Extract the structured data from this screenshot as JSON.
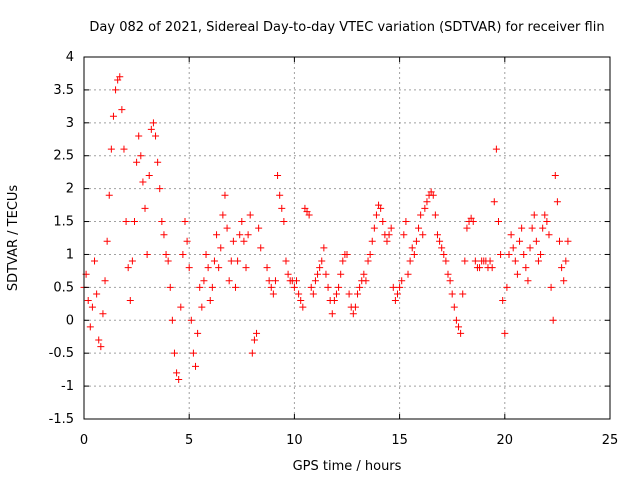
{
  "chart_data": {
    "type": "scatter",
    "title": "Day 082 of 2021, Sidereal Day-to-day VTEC variation (SDTVAR) for receiver flin",
    "xlabel": "GPS time / hours",
    "ylabel": "SDTVAR / TECUs",
    "xlim": [
      0,
      25
    ],
    "ylim": [
      -1.5,
      4
    ],
    "xticks": [
      0,
      5,
      10,
      15,
      20,
      25
    ],
    "yticks": [
      -1.5,
      -1,
      -0.5,
      0,
      0.5,
      1,
      1.5,
      2,
      2.5,
      3,
      3.5,
      4
    ],
    "xtick_labels": [
      "0",
      "5",
      "10",
      "15",
      "20",
      "25"
    ],
    "ytick_labels": [
      "-1.5",
      "-1",
      "-0.5",
      "0",
      "0.5",
      "1",
      "1.5",
      "2",
      "2.5",
      "3",
      "3.5",
      "4"
    ],
    "grid": true,
    "marker": "+",
    "color": "#ff0000",
    "series": [
      {
        "name": "SDTVAR",
        "points": [
          [
            0.0,
            0.5
          ],
          [
            0.1,
            0.7
          ],
          [
            0.2,
            0.3
          ],
          [
            0.3,
            -0.1
          ],
          [
            0.4,
            0.2
          ],
          [
            0.5,
            0.9
          ],
          [
            0.6,
            0.4
          ],
          [
            0.7,
            -0.3
          ],
          [
            0.8,
            -0.4
          ],
          [
            0.9,
            0.1
          ],
          [
            1.0,
            0.6
          ],
          [
            1.1,
            1.2
          ],
          [
            1.2,
            1.9
          ],
          [
            1.3,
            2.6
          ],
          [
            1.4,
            3.1
          ],
          [
            1.5,
            3.5
          ],
          [
            1.6,
            3.65
          ],
          [
            1.7,
            3.7
          ],
          [
            1.8,
            3.2
          ],
          [
            1.9,
            2.6
          ],
          [
            2.0,
            1.5
          ],
          [
            2.1,
            0.8
          ],
          [
            2.2,
            0.3
          ],
          [
            2.3,
            0.9
          ],
          [
            2.4,
            1.5
          ],
          [
            2.5,
            2.4
          ],
          [
            2.6,
            2.8
          ],
          [
            2.7,
            2.5
          ],
          [
            2.8,
            2.1
          ],
          [
            2.9,
            1.7
          ],
          [
            3.0,
            1.0
          ],
          [
            3.1,
            2.2
          ],
          [
            3.2,
            2.9
          ],
          [
            3.3,
            3.0
          ],
          [
            3.4,
            2.8
          ],
          [
            3.5,
            2.4
          ],
          [
            3.6,
            2.0
          ],
          [
            3.7,
            1.5
          ],
          [
            3.8,
            1.3
          ],
          [
            3.9,
            1.0
          ],
          [
            4.0,
            0.9
          ],
          [
            4.1,
            0.5
          ],
          [
            4.2,
            0.0
          ],
          [
            4.3,
            -0.5
          ],
          [
            4.4,
            -0.8
          ],
          [
            4.5,
            -0.9
          ],
          [
            4.6,
            0.2
          ],
          [
            4.7,
            1.0
          ],
          [
            4.8,
            1.5
          ],
          [
            4.9,
            1.2
          ],
          [
            5.0,
            0.8
          ],
          [
            5.1,
            0.0
          ],
          [
            5.2,
            -0.5
          ],
          [
            5.3,
            -0.7
          ],
          [
            5.4,
            -0.2
          ],
          [
            5.5,
            0.5
          ],
          [
            5.6,
            0.2
          ],
          [
            5.7,
            0.6
          ],
          [
            5.8,
            1.0
          ],
          [
            5.9,
            0.8
          ],
          [
            6.0,
            0.3
          ],
          [
            6.1,
            0.5
          ],
          [
            6.2,
            0.9
          ],
          [
            6.3,
            1.3
          ],
          [
            6.4,
            0.8
          ],
          [
            6.5,
            1.1
          ],
          [
            6.6,
            1.6
          ],
          [
            6.7,
            1.9
          ],
          [
            6.8,
            1.4
          ],
          [
            6.9,
            0.6
          ],
          [
            7.0,
            0.9
          ],
          [
            7.1,
            1.2
          ],
          [
            7.2,
            0.5
          ],
          [
            7.3,
            0.9
          ],
          [
            7.4,
            1.3
          ],
          [
            7.5,
            1.5
          ],
          [
            7.6,
            1.2
          ],
          [
            7.7,
            0.8
          ],
          [
            7.8,
            1.3
          ],
          [
            7.9,
            1.6
          ],
          [
            8.0,
            -0.5
          ],
          [
            8.1,
            -0.3
          ],
          [
            8.2,
            -0.2
          ],
          [
            8.3,
            1.4
          ],
          [
            8.4,
            1.1
          ],
          [
            8.7,
            0.8
          ],
          [
            8.8,
            0.6
          ],
          [
            8.9,
            0.5
          ],
          [
            9.0,
            0.4
          ],
          [
            9.1,
            0.6
          ],
          [
            9.2,
            2.2
          ],
          [
            9.3,
            1.9
          ],
          [
            9.4,
            1.7
          ],
          [
            9.5,
            1.5
          ],
          [
            9.6,
            0.9
          ],
          [
            9.7,
            0.7
          ],
          [
            9.8,
            0.6
          ],
          [
            9.9,
            0.6
          ],
          [
            10.0,
            0.5
          ],
          [
            10.1,
            0.6
          ],
          [
            10.2,
            0.4
          ],
          [
            10.3,
            0.3
          ],
          [
            10.4,
            0.2
          ],
          [
            10.5,
            1.7
          ],
          [
            10.6,
            1.65
          ],
          [
            10.7,
            1.6
          ],
          [
            10.8,
            0.5
          ],
          [
            10.9,
            0.4
          ],
          [
            11.0,
            0.6
          ],
          [
            11.1,
            0.7
          ],
          [
            11.2,
            0.8
          ],
          [
            11.3,
            0.9
          ],
          [
            11.4,
            1.1
          ],
          [
            11.5,
            0.7
          ],
          [
            11.6,
            0.5
          ],
          [
            11.7,
            0.3
          ],
          [
            11.8,
            0.1
          ],
          [
            11.9,
            0.3
          ],
          [
            12.0,
            0.4
          ],
          [
            12.1,
            0.5
          ],
          [
            12.2,
            0.7
          ],
          [
            12.3,
            0.9
          ],
          [
            12.4,
            1.0
          ],
          [
            12.5,
            1.0
          ],
          [
            12.6,
            0.4
          ],
          [
            12.7,
            0.2
          ],
          [
            12.8,
            0.1
          ],
          [
            12.9,
            0.2
          ],
          [
            13.0,
            0.4
          ],
          [
            13.1,
            0.5
          ],
          [
            13.2,
            0.6
          ],
          [
            13.3,
            0.7
          ],
          [
            13.4,
            0.6
          ],
          [
            13.5,
            0.9
          ],
          [
            13.6,
            1.0
          ],
          [
            13.7,
            1.2
          ],
          [
            13.8,
            1.4
          ],
          [
            13.9,
            1.6
          ],
          [
            14.0,
            1.75
          ],
          [
            14.1,
            1.7
          ],
          [
            14.2,
            1.5
          ],
          [
            14.3,
            1.3
          ],
          [
            14.4,
            1.2
          ],
          [
            14.5,
            1.3
          ],
          [
            14.6,
            1.4
          ],
          [
            14.7,
            0.5
          ],
          [
            14.8,
            0.3
          ],
          [
            14.9,
            0.4
          ],
          [
            15.0,
            0.5
          ],
          [
            15.1,
            0.6
          ],
          [
            15.2,
            1.3
          ],
          [
            15.3,
            1.5
          ],
          [
            15.4,
            0.7
          ],
          [
            15.5,
            0.9
          ],
          [
            15.6,
            1.1
          ],
          [
            15.7,
            1.0
          ],
          [
            15.8,
            1.2
          ],
          [
            15.9,
            1.4
          ],
          [
            16.0,
            1.6
          ],
          [
            16.1,
            1.3
          ],
          [
            16.2,
            1.7
          ],
          [
            16.3,
            1.8
          ],
          [
            16.4,
            1.9
          ],
          [
            16.5,
            1.95
          ],
          [
            16.6,
            1.9
          ],
          [
            16.7,
            1.6
          ],
          [
            16.8,
            1.3
          ],
          [
            16.9,
            1.2
          ],
          [
            17.0,
            1.1
          ],
          [
            17.1,
            1.0
          ],
          [
            17.2,
            0.9
          ],
          [
            17.3,
            0.7
          ],
          [
            17.4,
            0.6
          ],
          [
            17.5,
            0.4
          ],
          [
            17.6,
            0.2
          ],
          [
            17.7,
            0.0
          ],
          [
            17.8,
            -0.1
          ],
          [
            17.9,
            -0.2
          ],
          [
            18.0,
            0.4
          ],
          [
            18.1,
            0.9
          ],
          [
            18.2,
            1.4
          ],
          [
            18.3,
            1.5
          ],
          [
            18.4,
            1.55
          ],
          [
            18.5,
            1.5
          ],
          [
            18.6,
            0.9
          ],
          [
            18.7,
            0.8
          ],
          [
            18.8,
            0.8
          ],
          [
            18.9,
            0.9
          ],
          [
            19.0,
            0.9
          ],
          [
            19.1,
            0.9
          ],
          [
            19.2,
            0.8
          ],
          [
            19.3,
            0.9
          ],
          [
            19.4,
            0.8
          ],
          [
            19.5,
            1.8
          ],
          [
            19.6,
            2.6
          ],
          [
            19.7,
            1.5
          ],
          [
            19.8,
            1.0
          ],
          [
            19.9,
            0.3
          ],
          [
            20.0,
            -0.2
          ],
          [
            20.1,
            0.5
          ],
          [
            20.2,
            1.0
          ],
          [
            20.3,
            1.3
          ],
          [
            20.4,
            1.1
          ],
          [
            20.5,
            0.9
          ],
          [
            20.6,
            0.7
          ],
          [
            20.7,
            1.2
          ],
          [
            20.8,
            1.4
          ],
          [
            20.9,
            1.0
          ],
          [
            21.0,
            0.8
          ],
          [
            21.1,
            0.6
          ],
          [
            21.2,
            1.1
          ],
          [
            21.3,
            1.4
          ],
          [
            21.4,
            1.6
          ],
          [
            21.5,
            1.2
          ],
          [
            21.6,
            0.9
          ],
          [
            21.7,
            1.0
          ],
          [
            21.8,
            1.4
          ],
          [
            21.9,
            1.6
          ],
          [
            22.0,
            1.5
          ],
          [
            22.1,
            1.3
          ],
          [
            22.2,
            0.5
          ],
          [
            22.3,
            0.0
          ],
          [
            22.4,
            2.2
          ],
          [
            22.5,
            1.8
          ],
          [
            22.6,
            1.2
          ],
          [
            22.7,
            0.8
          ],
          [
            22.8,
            0.6
          ],
          [
            22.9,
            0.9
          ],
          [
            23.0,
            1.2
          ]
        ]
      }
    ]
  }
}
